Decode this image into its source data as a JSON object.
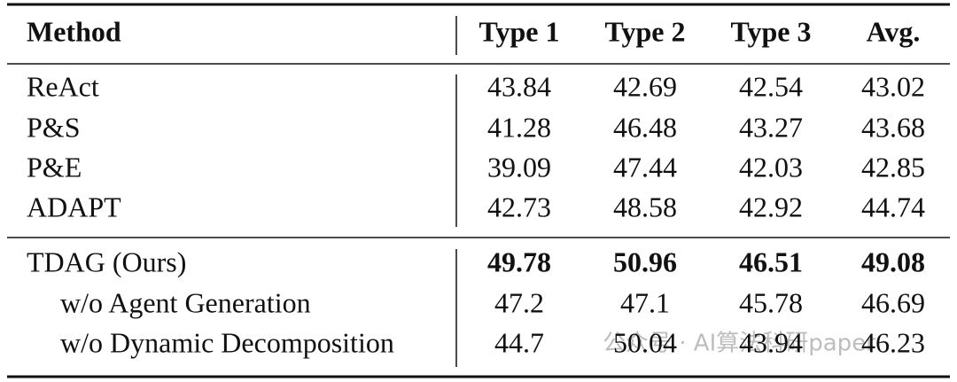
{
  "table": {
    "header": [
      "Method",
      "Type 1",
      "Type 2",
      "Type 3",
      "Avg."
    ],
    "groups": [
      {
        "rows": [
          {
            "method": "ReAct",
            "values": [
              "43.84",
              "42.69",
              "42.54",
              "43.02"
            ]
          },
          {
            "method": "P&S",
            "values": [
              "41.28",
              "46.48",
              "43.27",
              "43.68"
            ]
          },
          {
            "method": "P&E",
            "values": [
              "39.09",
              "47.44",
              "42.03",
              "42.85"
            ]
          },
          {
            "method": "ADAPT",
            "values": [
              "42.73",
              "48.58",
              "42.92",
              "44.74"
            ]
          }
        ]
      },
      {
        "rows": [
          {
            "method": "TDAG (Ours)",
            "values": [
              "49.78",
              "50.96",
              "46.51",
              "49.08"
            ]
          },
          {
            "method": "w/o Agent Generation",
            "values": [
              "47.2",
              "47.1",
              "45.78",
              "46.69"
            ]
          },
          {
            "method": "w/o Dynamic Decomposition",
            "values": [
              "44.7",
              "50.04",
              "43.94",
              "46.23"
            ]
          }
        ]
      }
    ]
  },
  "watermark": "公众号 · AI算法科研paper"
}
